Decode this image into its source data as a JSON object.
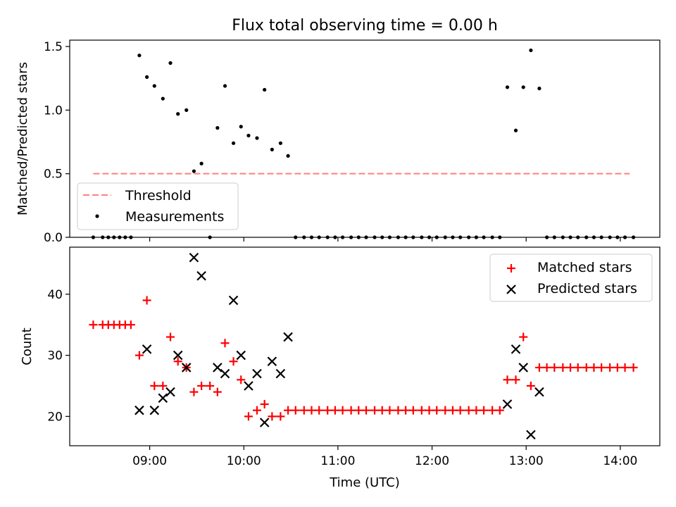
{
  "chart_data": [
    {
      "type": "scatter",
      "title": "Flux total observing time = 0.00 h",
      "ylabel": "Matched/Predicted stars",
      "xlabel": "",
      "xlim": [
        8.15,
        14.42
      ],
      "ylim": [
        0,
        1.55
      ],
      "yticks": [
        0,
        0.5,
        1.0,
        1.5
      ],
      "yticklabels": [
        "0.0",
        "0.5",
        "1.0",
        "1.5"
      ],
      "legend": {
        "placement": "lower-left",
        "entries": [
          "Threshold",
          "Measurements"
        ]
      },
      "threshold": {
        "name": "Threshold",
        "y": 0.5,
        "x_start": 8.4,
        "x_end": 14.1,
        "color": "#ff7f7f"
      },
      "series": [
        {
          "name": "Measurements",
          "color": "#000000",
          "x": [
            8.4,
            8.5,
            8.56,
            8.62,
            8.68,
            8.74,
            8.8,
            8.89,
            8.97,
            9.05,
            9.14,
            9.22,
            9.3,
            9.39,
            9.47,
            9.55,
            9.64,
            9.72,
            9.8,
            9.89,
            9.97,
            10.05,
            10.14,
            10.22,
            10.3,
            10.39,
            10.47,
            10.55,
            10.64,
            10.72,
            10.8,
            10.89,
            10.97,
            11.05,
            11.14,
            11.22,
            11.3,
            11.39,
            11.47,
            11.55,
            11.64,
            11.72,
            11.8,
            11.89,
            11.97,
            12.05,
            12.14,
            12.22,
            12.3,
            12.39,
            12.47,
            12.55,
            12.64,
            12.72,
            12.8,
            12.89,
            12.97,
            13.05,
            13.14,
            13.22,
            13.3,
            13.39,
            13.47,
            13.55,
            13.64,
            13.72,
            13.8,
            13.89,
            13.97,
            14.05,
            14.14
          ],
          "y": [
            0,
            0,
            0,
            0,
            0,
            0,
            0,
            1.43,
            1.26,
            1.19,
            1.09,
            1.37,
            0.97,
            1.0,
            0.52,
            0.58,
            0,
            0.86,
            1.19,
            0.74,
            0.87,
            0.8,
            0.78,
            1.16,
            0.69,
            0.74,
            0.64,
            0,
            0,
            0,
            0,
            0,
            0,
            0,
            0,
            0,
            0,
            0,
            0,
            0,
            0,
            0,
            0,
            0,
            0,
            0,
            0,
            0,
            0,
            0,
            0,
            0,
            0,
            0,
            1.18,
            0.84,
            1.18,
            1.47,
            1.17,
            0,
            0,
            0,
            0,
            0,
            0,
            0,
            0,
            0,
            0,
            0,
            0
          ]
        }
      ]
    },
    {
      "type": "scatter",
      "title": "",
      "xlabel": "Time (UTC)",
      "ylabel": "Count",
      "xlim": [
        8.15,
        14.42
      ],
      "ylim": [
        15.2,
        47.7
      ],
      "xticks": [
        9,
        10,
        11,
        12,
        13,
        14
      ],
      "xticklabels": [
        "09:00",
        "10:00",
        "11:00",
        "12:00",
        "13:00",
        "14:00"
      ],
      "yticks": [
        20,
        30,
        40
      ],
      "yticklabels": [
        "20",
        "30",
        "40"
      ],
      "legend": {
        "placement": "upper-right",
        "entries": [
          "Matched stars",
          "Predicted stars"
        ]
      },
      "series": [
        {
          "name": "Matched stars",
          "marker": "+",
          "color": "#ff0000",
          "x": [
            8.4,
            8.5,
            8.56,
            8.62,
            8.68,
            8.74,
            8.8,
            8.89,
            8.97,
            9.05,
            9.14,
            9.22,
            9.3,
            9.39,
            9.47,
            9.55,
            9.64,
            9.72,
            9.8,
            9.89,
            9.97,
            10.05,
            10.14,
            10.22,
            10.3,
            10.39,
            10.47,
            10.55,
            10.64,
            10.72,
            10.8,
            10.89,
            10.97,
            11.05,
            11.14,
            11.22,
            11.3,
            11.39,
            11.47,
            11.55,
            11.64,
            11.72,
            11.8,
            11.89,
            11.97,
            12.05,
            12.14,
            12.22,
            12.3,
            12.39,
            12.47,
            12.55,
            12.64,
            12.72,
            12.8,
            12.89,
            12.97,
            13.05,
            13.14,
            13.22,
            13.3,
            13.39,
            13.47,
            13.55,
            13.64,
            13.72,
            13.8,
            13.89,
            13.97,
            14.05,
            14.14
          ],
          "y": [
            35,
            35,
            35,
            35,
            35,
            35,
            35,
            30,
            39,
            25,
            25,
            33,
            29,
            28,
            24,
            25,
            25,
            24,
            32,
            29,
            26,
            20,
            21,
            22,
            20,
            20,
            21,
            21,
            21,
            21,
            21,
            21,
            21,
            21,
            21,
            21,
            21,
            21,
            21,
            21,
            21,
            21,
            21,
            21,
            21,
            21,
            21,
            21,
            21,
            21,
            21,
            21,
            21,
            21,
            26,
            26,
            33,
            25,
            28,
            28,
            28,
            28,
            28,
            28,
            28,
            28,
            28,
            28,
            28,
            28,
            28
          ]
        },
        {
          "name": "Predicted stars",
          "marker": "x",
          "color": "#000000",
          "x": [
            8.89,
            8.97,
            9.05,
            9.14,
            9.22,
            9.3,
            9.39,
            9.47,
            9.55,
            9.72,
            9.8,
            9.89,
            9.97,
            10.05,
            10.14,
            10.22,
            10.3,
            10.39,
            10.47,
            12.8,
            12.89,
            12.97,
            13.05,
            13.14
          ],
          "y": [
            21,
            31,
            21,
            23,
            24,
            30,
            28,
            46,
            43,
            28,
            27,
            39,
            30,
            25,
            27,
            19,
            29,
            27,
            33,
            22,
            31,
            28,
            17,
            24
          ]
        }
      ]
    }
  ]
}
